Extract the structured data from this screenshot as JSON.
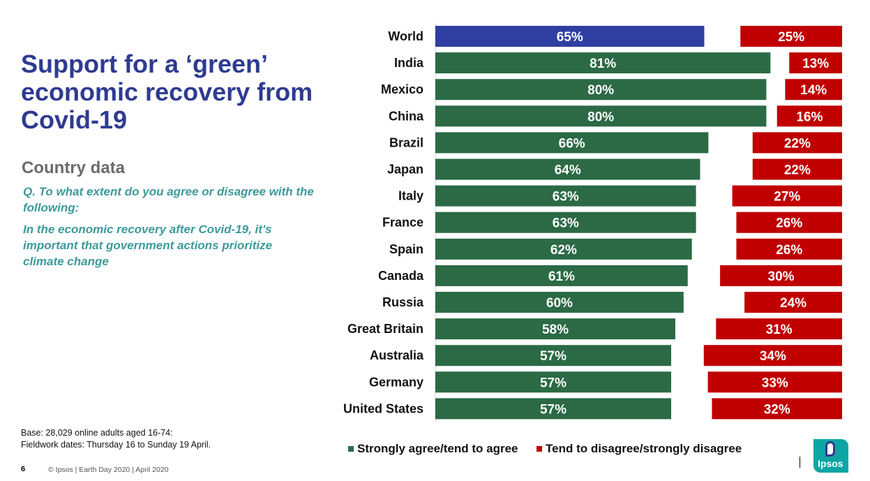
{
  "title": "Support for a ‘green’ economic recovery from Covid-19",
  "subtitle": "Country data",
  "question_1": "Q. To what extent do you agree or disagree with the following:",
  "question_2": "In the economic recovery after Covid-19, it's important that government actions prioritize climate change",
  "footnote_base": "Base: 28,029 online adults aged 16-74:",
  "footnote_fieldwork": "Fieldwork dates: Thursday 16 to Sunday 19 April.",
  "page_number": "6",
  "copyright": "© Ipsos | Earth Day 2020 | April 2020",
  "logo_text": "Ipsos",
  "colors": {
    "world_agree": "#2e3fa1",
    "agree": "#2b6a45",
    "disagree": "#c00000"
  },
  "chart_data": {
    "type": "bar",
    "orientation": "horizontal",
    "categories": [
      "World",
      "India",
      "Mexico",
      "China",
      "Brazil",
      "Japan",
      "Italy",
      "France",
      "Spain",
      "Canada",
      "Russia",
      "Great Britain",
      "Australia",
      "Germany",
      "United States"
    ],
    "series": [
      {
        "name": "Strongly agree/tend to agree",
        "values": [
          65,
          81,
          80,
          80,
          66,
          64,
          63,
          63,
          62,
          61,
          60,
          58,
          57,
          57,
          57
        ],
        "color": "#2b6a45"
      },
      {
        "name": "Tend to disagree/strongly disagree",
        "values": [
          25,
          13,
          14,
          16,
          22,
          22,
          27,
          26,
          26,
          30,
          24,
          31,
          34,
          33,
          32
        ],
        "color": "#c00000"
      }
    ],
    "value_format": "percent",
    "legend_position": "bottom"
  }
}
